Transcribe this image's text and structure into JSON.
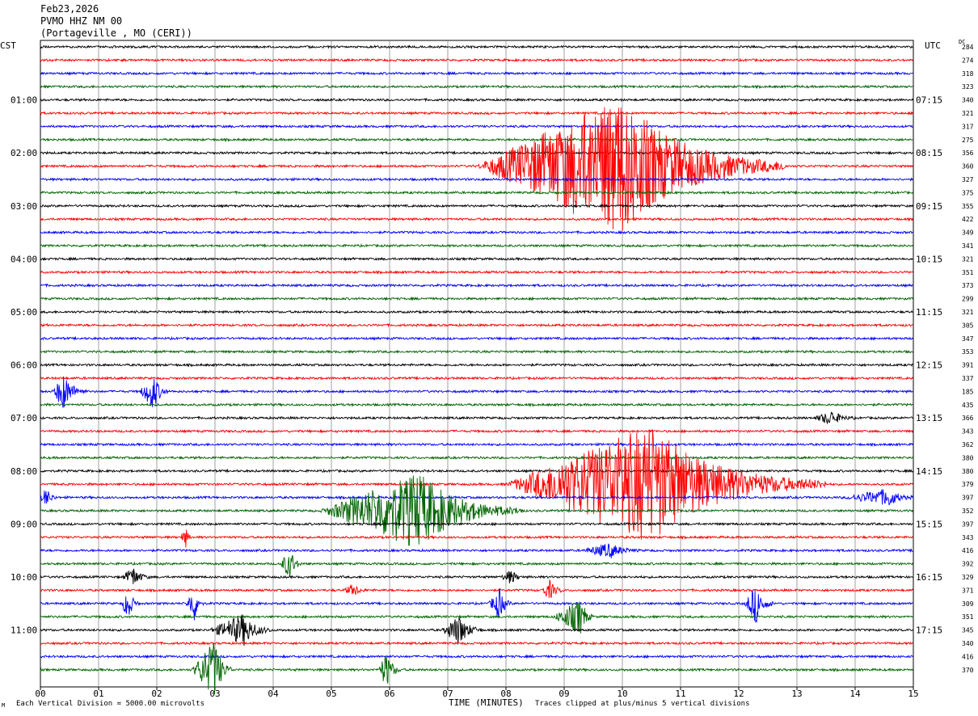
{
  "header": {
    "date": "Feb23,2026",
    "station": "PVMO HHZ NM 00",
    "location": "(Portageville , MO (CERI))"
  },
  "left_timezone": "CST",
  "right_timezone": "UTC",
  "dc_label": "DC",
  "x_axis_title": "TIME (MINUTES)",
  "footer_left": "Each Vertical Division = 5000.00 microvolts",
  "footer_right": "Traces clipped at plus/minus 5 vertical divisions",
  "corner_mark": "M",
  "colors": {
    "row0": "#000000",
    "row1": "#ff0000",
    "row2": "#0000ff",
    "row3": "#006400",
    "grid": "#888888"
  },
  "chart_data": {
    "type": "line",
    "title": "PVMO HHZ NM 00",
    "xlabel": "TIME (MINUTES)",
    "xlim": [
      0,
      15
    ],
    "x_ticks": [
      "00",
      "01",
      "02",
      "03",
      "04",
      "05",
      "06",
      "07",
      "08",
      "09",
      "10",
      "11",
      "12",
      "13",
      "14",
      "15"
    ],
    "rows": 48,
    "row_color_cycle": [
      "black",
      "red",
      "blue",
      "green"
    ],
    "left_time_labels": [
      {
        "row": 4,
        "label": "01:00"
      },
      {
        "row": 8,
        "label": "02:00"
      },
      {
        "row": 12,
        "label": "03:00"
      },
      {
        "row": 16,
        "label": "04:00"
      },
      {
        "row": 20,
        "label": "05:00"
      },
      {
        "row": 24,
        "label": "06:00"
      },
      {
        "row": 28,
        "label": "07:00"
      },
      {
        "row": 32,
        "label": "08:00"
      },
      {
        "row": 36,
        "label": "09:00"
      },
      {
        "row": 40,
        "label": "10:00"
      },
      {
        "row": 44,
        "label": "11:00"
      }
    ],
    "right_time_labels": [
      {
        "row": 4,
        "label": "07:15"
      },
      {
        "row": 8,
        "label": "08:15"
      },
      {
        "row": 12,
        "label": "09:15"
      },
      {
        "row": 16,
        "label": "10:15"
      },
      {
        "row": 20,
        "label": "11:15"
      },
      {
        "row": 24,
        "label": "12:15"
      },
      {
        "row": 28,
        "label": "13:15"
      },
      {
        "row": 32,
        "label": "14:15"
      },
      {
        "row": 36,
        "label": "15:15"
      },
      {
        "row": 40,
        "label": "16:15"
      },
      {
        "row": 44,
        "label": "17:15"
      }
    ],
    "dc_offsets": [
      284,
      274,
      318,
      323,
      340,
      321,
      317,
      275,
      356,
      360,
      327,
      375,
      355,
      422,
      349,
      341,
      321,
      351,
      373,
      299,
      321,
      305,
      347,
      353,
      391,
      337,
      185,
      435,
      366,
      343,
      362,
      380,
      380,
      379,
      397,
      352,
      397,
      343,
      416,
      392,
      329,
      371,
      309,
      351,
      345,
      340,
      416,
      370
    ],
    "events": [
      {
        "row": 9,
        "start": 7.5,
        "end": 12.8,
        "peak": 10.0,
        "amplitude": 6.0,
        "clipped": true
      },
      {
        "row": 33,
        "start": 8.0,
        "end": 13.5,
        "peak": 10.5,
        "amplitude": 5.0,
        "clipped": true
      },
      {
        "row": 35,
        "start": 4.8,
        "end": 8.3,
        "peak": 6.5,
        "amplitude": 3.2
      },
      {
        "row": 26,
        "start": 0.2,
        "end": 0.8,
        "peak": 0.4,
        "amplitude": 1.5
      },
      {
        "row": 26,
        "start": 1.7,
        "end": 2.2,
        "peak": 1.95,
        "amplitude": 1.5
      },
      {
        "row": 40,
        "start": 1.4,
        "end": 1.9,
        "peak": 1.6,
        "amplitude": 0.8
      },
      {
        "row": 42,
        "start": 1.4,
        "end": 1.7,
        "peak": 1.5,
        "amplitude": 1.5
      },
      {
        "row": 42,
        "start": 2.5,
        "end": 2.8,
        "peak": 2.65,
        "amplitude": 1.5
      },
      {
        "row": 42,
        "start": 7.7,
        "end": 8.1,
        "peak": 7.9,
        "amplitude": 1.3
      },
      {
        "row": 42,
        "start": 12.1,
        "end": 12.6,
        "peak": 12.3,
        "amplitude": 1.6
      },
      {
        "row": 44,
        "start": 2.9,
        "end": 4.0,
        "peak": 3.5,
        "amplitude": 1.3
      },
      {
        "row": 44,
        "start": 6.9,
        "end": 7.6,
        "peak": 7.2,
        "amplitude": 1.3
      },
      {
        "row": 43,
        "start": 8.8,
        "end": 9.5,
        "peak": 9.3,
        "amplitude": 1.5
      },
      {
        "row": 47,
        "start": 2.6,
        "end": 3.3,
        "peak": 3.0,
        "amplitude": 2.5
      },
      {
        "row": 47,
        "start": 5.8,
        "end": 6.2,
        "peak": 5.95,
        "amplitude": 1.5
      },
      {
        "row": 39,
        "start": 4.1,
        "end": 4.5,
        "peak": 4.3,
        "amplitude": 1.2
      },
      {
        "row": 38,
        "start": 9.3,
        "end": 10.3,
        "peak": 9.8,
        "amplitude": 0.6
      },
      {
        "row": 41,
        "start": 8.6,
        "end": 9.0,
        "peak": 8.75,
        "amplitude": 0.8
      },
      {
        "row": 41,
        "start": 5.2,
        "end": 5.6,
        "peak": 5.4,
        "amplitude": 0.5
      },
      {
        "row": 28,
        "start": 13.3,
        "end": 14.0,
        "peak": 13.6,
        "amplitude": 0.6
      },
      {
        "row": 34,
        "start": 13.8,
        "end": 15.0,
        "peak": 14.6,
        "amplitude": 0.7
      },
      {
        "row": 34,
        "start": 0.0,
        "end": 0.3,
        "peak": 0.1,
        "amplitude": 0.8
      },
      {
        "row": 37,
        "start": 2.4,
        "end": 2.6,
        "peak": 2.5,
        "amplitude": 0.8
      },
      {
        "row": 40,
        "start": 7.9,
        "end": 8.3,
        "peak": 8.1,
        "amplitude": 0.6
      }
    ]
  }
}
